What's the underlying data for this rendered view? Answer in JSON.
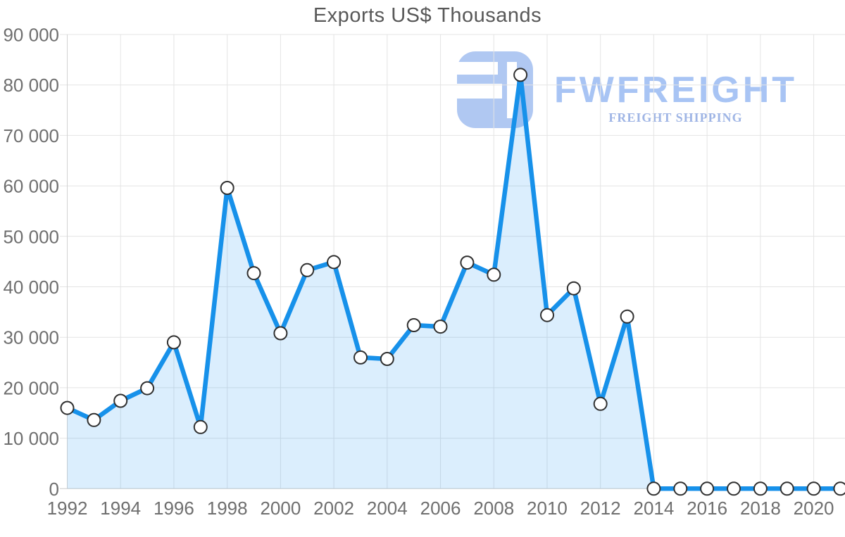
{
  "page": {
    "background": "#ffffff"
  },
  "chart_data": {
    "type": "area",
    "title": "Exports US$ Thousands",
    "x": [
      1992,
      1993,
      1994,
      1995,
      1996,
      1997,
      1998,
      1999,
      2000,
      2001,
      2002,
      2003,
      2004,
      2005,
      2006,
      2007,
      2008,
      2009,
      2010,
      2011,
      2012,
      2013,
      2014,
      2015,
      2016,
      2017,
      2018,
      2019,
      2020,
      2021
    ],
    "values": [
      16000,
      13600,
      17400,
      19900,
      29000,
      12200,
      59600,
      42700,
      30800,
      43300,
      44900,
      26000,
      25700,
      32400,
      32100,
      44800,
      42400,
      82000,
      34400,
      39700,
      16800,
      34100,
      0,
      0,
      0,
      0,
      0,
      0,
      0,
      0
    ],
    "series_name": "Exports US$ Thousands",
    "ylim": [
      0,
      90000
    ],
    "ytick_labels": [
      "90 000",
      "80 000",
      "70 000",
      "60 000",
      "50 000",
      "40 000",
      "30 000",
      "20 000",
      "10 000",
      "0"
    ],
    "xtick_labels": [
      "1992",
      "1994",
      "1996",
      "1998",
      "2000",
      "2002",
      "2004",
      "2006",
      "2008",
      "2010",
      "2012",
      "2014",
      "2016",
      "2018",
      "2020"
    ],
    "grid": "both",
    "legend": "none",
    "line_color": "#1791ea",
    "fill_color": "rgba(33,150,243,0.16)",
    "marker_fill": "#ffffff",
    "marker_stroke": "#303030"
  },
  "watermark": {
    "brand": "FWFREIGHT",
    "tagline": "FREIGHT SHIPPING",
    "logo_color": "#b0c8f2",
    "brand_color": "#a8c4f4",
    "tagline_color": "#9fb5e5"
  },
  "styles": {
    "title_color": "#585858",
    "tick_color": "#6f6f6f",
    "grid_color": "#e4e4e4",
    "axis_color": "#d2d2d2"
  }
}
